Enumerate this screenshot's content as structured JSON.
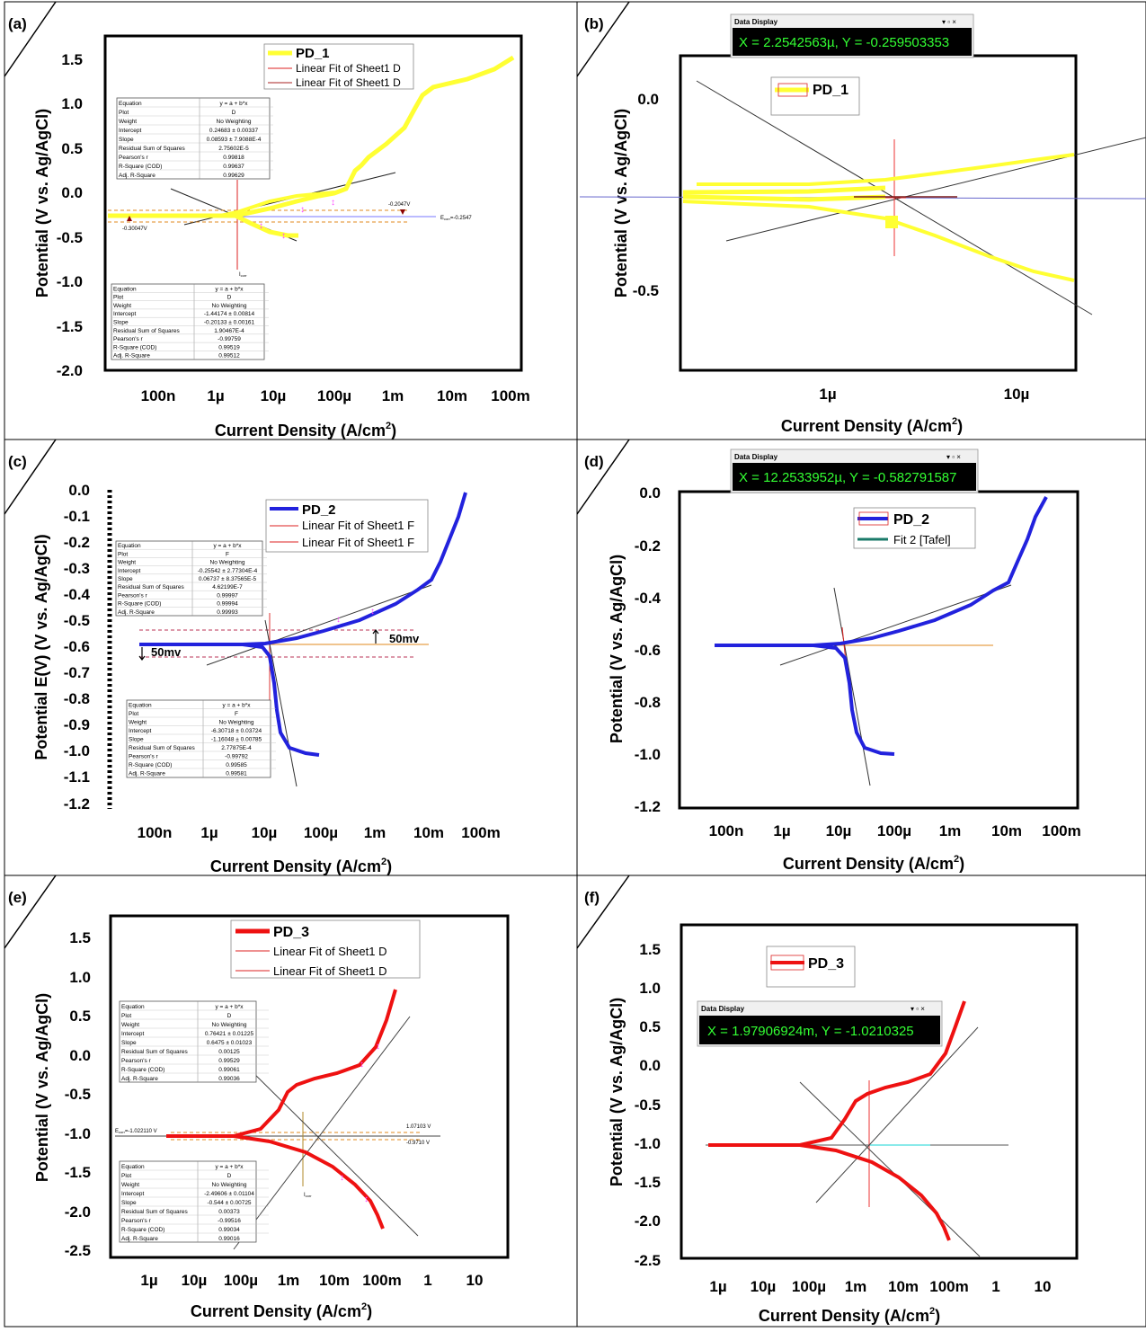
{
  "panels": [
    {
      "tag": "(a)",
      "xlabel": "Current Density (A/cm",
      "xlabel_sup": "2",
      "xlabel_suffix": ")",
      "ylabel": "Potential (V vs. Ag/AgCl)",
      "yticks": [
        "1.5",
        "1.0",
        "0.5",
        "0.0",
        "-0.5",
        "-1.0",
        "-1.5",
        "-2.0"
      ],
      "xticks": [
        "100n",
        "1µ",
        "10µ",
        "100µ",
        "1m",
        "10m",
        "100m"
      ],
      "legend": [
        "PD_1",
        "Linear Fit of Sheet1 D",
        "Linear Fit of Sheet1 D"
      ],
      "annotations": [
        "-0.2047V",
        "E",
        "corr",
        "=-0.2547",
        "-0.30047V",
        "I",
        "corr"
      ],
      "fit_tables": [
        {
          "rows": [
            [
              "Equation",
              "y = a + b*x"
            ],
            [
              "Plot",
              "D"
            ],
            [
              "Weight",
              "No Weighting"
            ],
            [
              "Intercept",
              "0.24683 ± 0.00337"
            ],
            [
              "Slope",
              "0.08593 ± 7.9088E-4"
            ],
            [
              "Residual Sum of Squares",
              "2.75602E-5"
            ],
            [
              "Pearson's r",
              "0.99818"
            ],
            [
              "R-Square (COD)",
              "0.99637"
            ],
            [
              "Adj. R-Square",
              "0.99629"
            ]
          ]
        },
        {
          "rows": [
            [
              "Equation",
              "y = a + b*x"
            ],
            [
              "Plot",
              "D"
            ],
            [
              "Weight",
              "No Weighting"
            ],
            [
              "Intercept",
              "-1.44174 ± 0.00814"
            ],
            [
              "Slope",
              "-0.20133 ± 0.00161"
            ],
            [
              "Residual Sum of Squares",
              "1.90467E-4"
            ],
            [
              "Pearson's r",
              "-0.99759"
            ],
            [
              "R-Square (COD)",
              "0.99519"
            ],
            [
              "Adj. R-Square",
              "0.99512"
            ]
          ]
        }
      ]
    },
    {
      "tag": "(b)",
      "xlabel": "Current Density (A/cm",
      "xlabel_sup": "2",
      "xlabel_suffix": ")",
      "ylabel": "Potential (V vs. Ag/AgCl)",
      "yticks": [
        "0.0",
        "-0.5"
      ],
      "xticks": [
        "1µ",
        "10µ"
      ],
      "legend": [
        "PD_1"
      ],
      "data_display": {
        "title": "Data Display",
        "text": "X = 2.2542563µ, Y = -0.259503353",
        "controls": "▾ ▫ ×"
      }
    },
    {
      "tag": "(c)",
      "xlabel": "Current Density (A/cm",
      "xlabel_sup": "2",
      "xlabel_suffix": ")",
      "ylabel": "Potential E(V) (V vs. Ag/AgCl)",
      "yticks": [
        "0.0",
        "-0.1",
        "-0.2",
        "-0.3",
        "-0.4",
        "-0.5",
        "-0.6",
        "-0.7",
        "-0.8",
        "-0.9",
        "-1.0",
        "-1.1",
        "-1.2"
      ],
      "xticks": [
        "100n",
        "1µ",
        "10µ",
        "100µ",
        "1m",
        "10m",
        "100m"
      ],
      "legend": [
        "PD_2",
        "Linear Fit of Sheet1 F",
        "Linear Fit of Sheet1 F"
      ],
      "annotations": [
        "50mv",
        "50mv"
      ],
      "fit_tables": [
        {
          "rows": [
            [
              "Equation",
              "y = a + b*x"
            ],
            [
              "Plot",
              "F"
            ],
            [
              "Weight",
              "No Weighting"
            ],
            [
              "Intercept",
              "-0.25542 ± 2.77304E-4"
            ],
            [
              "Slope",
              "0.06737 ± 8.37565E-5"
            ],
            [
              "Residual Sum of Squares",
              "4.62199E-7"
            ],
            [
              "Pearson's r",
              "0.99997"
            ],
            [
              "R-Square (COD)",
              "0.99994"
            ],
            [
              "Adj. R-Square",
              "0.99993"
            ]
          ]
        },
        {
          "rows": [
            [
              "Equation",
              "y = a + b*x"
            ],
            [
              "Plot",
              "F"
            ],
            [
              "Weight",
              "No Weighting"
            ],
            [
              "Intercept",
              "-6.30718 ± 0.03724"
            ],
            [
              "Slope",
              "-1.16048 ± 0.00785"
            ],
            [
              "Residual Sum of Squares",
              "2.77875E-4"
            ],
            [
              "Pearson's r",
              "-0.99792"
            ],
            [
              "R-Square (COD)",
              "0.99585"
            ],
            [
              "Adj. R-Square",
              "0.99581"
            ]
          ]
        }
      ]
    },
    {
      "tag": "(d)",
      "xlabel": "Current Density (A/cm",
      "xlabel_sup": "2",
      "xlabel_suffix": ")",
      "ylabel": "Potential (V vs. Ag/AgCl)",
      "yticks": [
        "0.0",
        "-0.2",
        "-0.4",
        "-0.6",
        "-0.8",
        "-1.0",
        "-1.2"
      ],
      "xticks": [
        "100n",
        "1µ",
        "10µ",
        "100µ",
        "1m",
        "10m",
        "100m"
      ],
      "legend": [
        "PD_2",
        "Fit 2 [Tafel]"
      ],
      "data_display": {
        "title": "Data Display",
        "text": "X = 12.2533952µ, Y = -0.582791587",
        "controls": "▾ ▫ ×"
      }
    },
    {
      "tag": "(e)",
      "xlabel": "Current Density (A/cm",
      "xlabel_sup": "2",
      "xlabel_suffix": ")",
      "ylabel": "Potential (V vs. Ag/AgCl)",
      "yticks": [
        "1.5",
        "1.0",
        "0.5",
        "0.0",
        "-0.5",
        "-1.0",
        "-1.5",
        "-2.0",
        "-2.5"
      ],
      "xticks": [
        "1µ",
        "10µ",
        "100µ",
        "1m",
        "10m",
        "100m",
        "1",
        "10"
      ],
      "legend": [
        "PD_3",
        "Linear Fit of Sheet1 D",
        "Linear Fit of Sheet1 D"
      ],
      "annotations": [
        "E",
        "corr",
        "=-1.022110 V",
        "1.07103 V",
        "-0.9710 V",
        "I",
        "corr"
      ],
      "fit_tables": [
        {
          "rows": [
            [
              "Equation",
              "y = a + b*x"
            ],
            [
              "Plot",
              "D"
            ],
            [
              "Weight",
              "No Weighting"
            ],
            [
              "Intercept",
              "0.76421 ± 0.01225"
            ],
            [
              "Slope",
              "0.6475 ± 0.01023"
            ],
            [
              "Residual Sum of Squares",
              "0.00125"
            ],
            [
              "Pearson's r",
              "0.99529"
            ],
            [
              "R-Square (COD)",
              "0.99061"
            ],
            [
              "Adj. R-Square",
              "0.99036"
            ]
          ]
        },
        {
          "rows": [
            [
              "Equation",
              "y = a + b*x"
            ],
            [
              "Plot",
              "D"
            ],
            [
              "Weight",
              "No Weighting"
            ],
            [
              "Intercept",
              "-2.49606 ± 0.01104"
            ],
            [
              "Slope",
              "-0.544 ± 0.00725"
            ],
            [
              "Residual Sum of Squares",
              "0.00373"
            ],
            [
              "Pearson's r",
              "-0.99516"
            ],
            [
              "R-Square (COD)",
              "0.99034"
            ],
            [
              "Adj. R-Square",
              "0.99016"
            ]
          ]
        }
      ]
    },
    {
      "tag": "(f)",
      "xlabel": "Current Density (A/cm",
      "xlabel_sup": "2",
      "xlabel_suffix": ")",
      "ylabel": "Potential (V vs. Ag/AgCl)",
      "yticks": [
        "1.5",
        "1.0",
        "0.5",
        "0.0",
        "-0.5",
        "-1.0",
        "-1.5",
        "-2.0",
        "-2.5"
      ],
      "xticks": [
        "1µ",
        "10µ",
        "100µ",
        "1m",
        "10m",
        "100m",
        "1",
        "10"
      ],
      "legend": [
        "PD_3"
      ],
      "data_display": {
        "title": "Data Display",
        "text": "X = 1.97906924m, Y = -1.0210325",
        "controls": "▾ ▫ ×"
      }
    }
  ],
  "colors": {
    "pd1": "#ffff33",
    "pd2": "#2222dd",
    "pd3": "#ee1111",
    "fit": "#1a7a6a",
    "display_bg": "#000000",
    "display_text": "#33ff33"
  },
  "chart_data": [
    {
      "type": "line",
      "panel": "(a)",
      "xscale": "log",
      "xlim": [
        1e-08,
        0.1
      ],
      "ylim": [
        -2.0,
        1.7
      ],
      "series": [
        {
          "name": "PD_1",
          "x": [
            1e-08,
            1e-07,
            1e-06,
            2.25e-06,
            5e-06,
            1e-05,
            2.5e-05,
            0.0001,
            0.0003,
            0.001,
            0.004,
            0.02,
            0.1
          ],
          "y": [
            -0.27,
            -0.27,
            -0.27,
            -0.26,
            -0.3,
            -0.4,
            -0.48,
            -0.05,
            0.25,
            0.55,
            1.05,
            1.2,
            1.5
          ]
        }
      ]
    },
    {
      "type": "line",
      "panel": "(b)",
      "xscale": "log",
      "xlim": [
        1.5e-07,
        2e-05
      ],
      "ylim": [
        -0.72,
        0.15
      ],
      "series": [
        {
          "name": "PD_1",
          "x": [
            1.5e-07,
            1e-06,
            2.25e-06,
            1e-05,
            2e-05
          ],
          "y": [
            -0.26,
            -0.26,
            -0.26,
            -0.38,
            -0.47
          ]
        }
      ]
    },
    {
      "type": "line",
      "panel": "(c)",
      "xscale": "log",
      "xlim": [
        1e-08,
        0.2
      ],
      "ylim": [
        -1.2,
        0.0
      ],
      "series": [
        {
          "name": "PD_2",
          "x": [
            5e-08,
            5e-06,
            1.2e-05,
            2e-05,
            3e-05,
            0.0001,
            0.0001,
            0.001,
            0.01,
            0.05
          ],
          "y": [
            -0.583,
            -0.583,
            -0.58,
            -0.7,
            -0.93,
            -1.0,
            -0.54,
            -0.45,
            -0.33,
            -0.02
          ]
        }
      ]
    },
    {
      "type": "line",
      "panel": "(d)",
      "xscale": "log",
      "xlim": [
        1e-08,
        0.2
      ],
      "ylim": [
        -1.2,
        0.0
      ],
      "series": [
        {
          "name": "PD_2",
          "x": [
            5e-08,
            5e-06,
            1.2e-05,
            2e-05,
            3e-05,
            0.0001,
            0.0001,
            0.001,
            0.01,
            0.05
          ],
          "y": [
            -0.583,
            -0.583,
            -0.58,
            -0.7,
            -0.93,
            -1.0,
            -0.54,
            -0.45,
            -0.33,
            -0.02
          ]
        }
      ]
    },
    {
      "type": "line",
      "panel": "(e)",
      "xscale": "log",
      "xlim": [
        1e-07,
        30
      ],
      "ylim": [
        -2.5,
        1.7
      ],
      "series": [
        {
          "name": "PD_3",
          "x": [
            2e-06,
            0.0001,
            0.0005,
            0.001,
            0.01,
            0.05,
            0.2,
            0.1
          ],
          "y": [
            -1.02,
            -1.02,
            -0.9,
            -0.4,
            -0.2,
            -0.1,
            0.8,
            -2.2
          ]
        }
      ]
    },
    {
      "type": "line",
      "panel": "(f)",
      "xscale": "log",
      "xlim": [
        1e-07,
        30
      ],
      "ylim": [
        -2.5,
        1.7
      ],
      "series": [
        {
          "name": "PD_3",
          "x": [
            2e-06,
            0.0001,
            0.0005,
            0.001,
            0.01,
            0.05,
            0.2,
            0.1
          ],
          "y": [
            -1.02,
            -1.02,
            -0.9,
            -0.4,
            -0.2,
            -0.1,
            0.8,
            -2.2
          ]
        }
      ]
    }
  ]
}
